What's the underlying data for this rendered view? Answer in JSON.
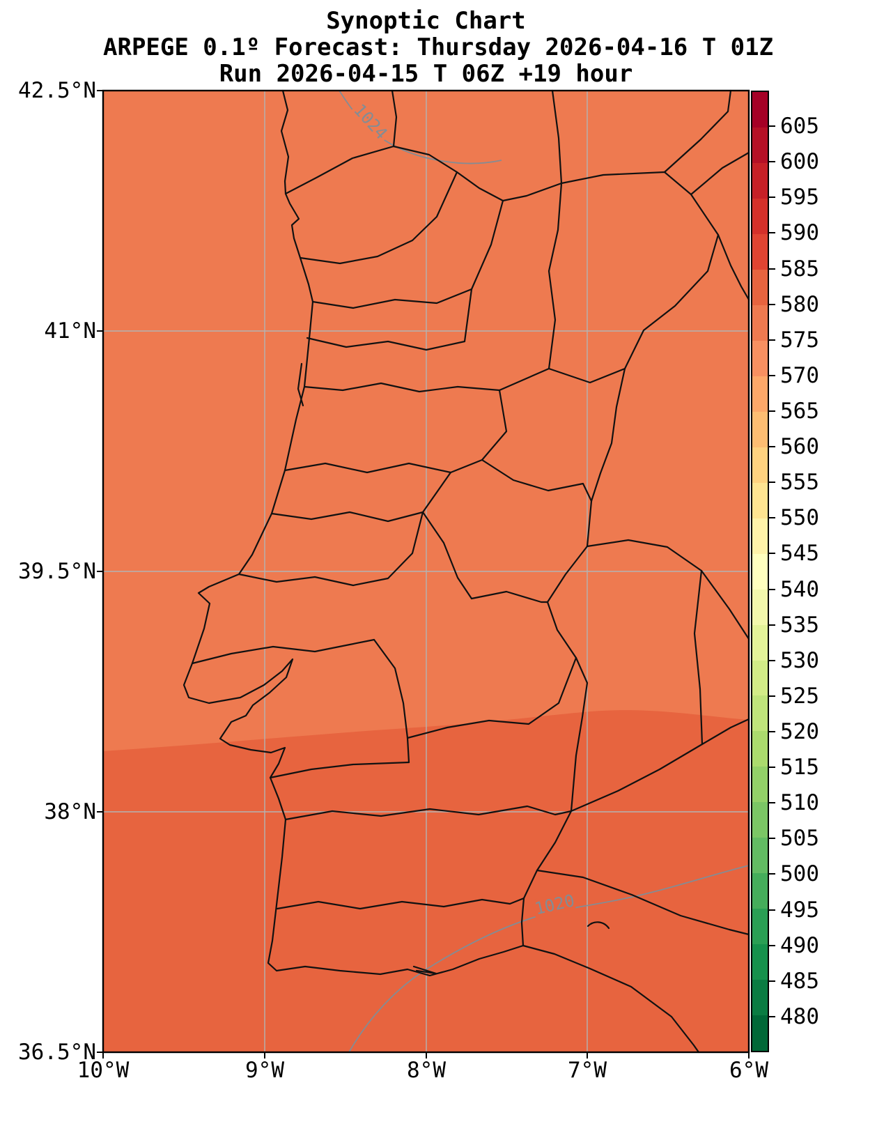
{
  "title": {
    "line1": "Synoptic Chart",
    "line2": "ARPEGE 0.1º Forecast: Thursday 2026-04-16 T 01Z",
    "line3": "Run 2026-04-15 T 06Z +19 hour"
  },
  "axes": {
    "lat_ticks": [
      "42.5°N",
      "41°N",
      "39.5°N",
      "38°N",
      "36.5°N"
    ],
    "lon_ticks": [
      "10°W",
      "9°W",
      "8°W",
      "7°W",
      "6°W"
    ]
  },
  "colorbar": {
    "tick_labels": [
      "605",
      "600",
      "595",
      "590",
      "585",
      "580",
      "575",
      "570",
      "565",
      "560",
      "555",
      "550",
      "545",
      "540",
      "535",
      "530",
      "525",
      "520",
      "515",
      "510",
      "505",
      "500",
      "495",
      "490",
      "485",
      "480"
    ],
    "colors": [
      "#a50026",
      "#b51026",
      "#c62027",
      "#d4302a",
      "#e04432",
      "#e7643f",
      "#ee7a50",
      "#f79061",
      "#fda869",
      "#fdbd72",
      "#fed27f",
      "#fee491",
      "#fef2a9",
      "#ffffbf",
      "#f2f8ac",
      "#e3f399",
      "#d2ec87",
      "#bfe47b",
      "#abdb6d",
      "#93d168",
      "#7bc665",
      "#62bb63",
      "#45ad5b",
      "#2a9f54",
      "#16914c",
      "#0a7c42",
      "#006837"
    ]
  },
  "map": {
    "fill_main": "#ee7a50",
    "fill_south": "#e7643f",
    "boundary_color": "#111111",
    "grid_color": "#b3b3b3",
    "contour_color": "#848c94",
    "contour_labels": [
      "1024",
      "1020"
    ]
  },
  "chart_data": {
    "type": "heatmap",
    "title": "Synoptic Chart",
    "subtitle": "ARPEGE 0.1º Forecast: Thursday 2026-04-16 T 01Z",
    "run_line": "Run 2026-04-15 T 06Z +19 hour",
    "x": {
      "tick_labels": [
        "10°W",
        "9°W",
        "8°W",
        "7°W",
        "6°W"
      ],
      "range_deg_west": [
        10,
        6
      ]
    },
    "y": {
      "tick_labels": [
        "42.5°N",
        "41°N",
        "39.5°N",
        "38°N",
        "36.5°N"
      ],
      "range_deg_north": [
        36.5,
        42.5
      ]
    },
    "colorbar_levels": [
      480,
      485,
      490,
      495,
      500,
      505,
      510,
      515,
      520,
      525,
      530,
      535,
      540,
      545,
      550,
      555,
      560,
      565,
      570,
      575,
      580,
      585,
      590,
      595,
      600,
      605
    ],
    "visible_fill_bands": [
      {
        "value_range": [
          575,
          580
        ],
        "region": "most of map, north of about 38.3°N",
        "color": "#ee7a50"
      },
      {
        "value_range": [
          580,
          585
        ],
        "region": "southern strip, south of about 38.3°N",
        "color": "#e7643f"
      }
    ],
    "contour_lines": [
      {
        "label": "1024",
        "location": "enters top edge near 8.5°W and trends southeast"
      },
      {
        "label": "1020",
        "location": "from east edge near 37.7°N southwest across the Algarve to bottom edge near 8.5°W"
      }
    ],
    "grid": true,
    "legend_position": "right vertical colorbar"
  }
}
